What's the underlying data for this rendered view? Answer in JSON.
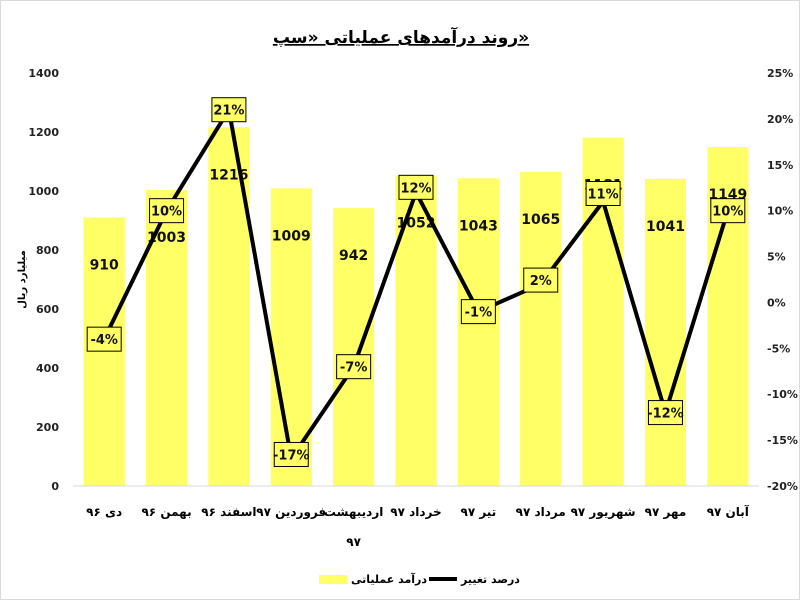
{
  "chart_data": {
    "type": "bar",
    "title": "روند درآمدهای عملیاتی «سپ»",
    "ylabel": "میلیارد ریال",
    "categories": [
      [
        "دی ۹۶"
      ],
      [
        "بهمن ۹۶"
      ],
      [
        "اسفند ۹۶"
      ],
      [
        "فروردین ۹۷"
      ],
      [
        "اردیبهشت",
        "۹۷"
      ],
      [
        "خرداد ۹۷"
      ],
      [
        "تیر ۹۷"
      ],
      [
        "مرداد ۹۷"
      ],
      [
        "شهریور ۹۷"
      ],
      [
        "مهر ۹۷"
      ],
      [
        "آبان ۹۷"
      ]
    ],
    "series": [
      {
        "name": "درآمد عملیاتی",
        "type": "bar",
        "axis": "left",
        "color": "#ffff66",
        "values": [
          910,
          1003,
          1216,
          1009,
          942,
          1052,
          1043,
          1065,
          1181,
          1041,
          1149
        ],
        "labels": [
          "910",
          "1003",
          "1216",
          "1009",
          "942",
          "1052",
          "1043",
          "1065",
          "1181",
          "1041",
          "1149"
        ]
      },
      {
        "name": "درصد تغییر",
        "type": "line",
        "axis": "right",
        "color": "#000000",
        "values": [
          -4,
          10,
          21,
          -17,
          -7,
          12,
          -1,
          2,
          11,
          -12,
          10
        ],
        "labels": [
          "-4%",
          "10%",
          "21%",
          "-17%",
          "-7%",
          "12%",
          "-1%",
          "2%",
          "11%",
          "-12%",
          "10%"
        ]
      }
    ],
    "ylim": [
      0,
      1400
    ],
    "yticks": [
      0,
      200,
      400,
      600,
      800,
      1000,
      1200,
      1400
    ],
    "ytick_labels": [
      "0",
      "200",
      "400",
      "600",
      "800",
      "1000",
      "1200",
      "1400"
    ],
    "y2lim": [
      -20,
      25
    ],
    "y2ticks": [
      -20,
      -15,
      -10,
      -5,
      0,
      5,
      10,
      15,
      20,
      25
    ],
    "y2tick_labels": [
      "-20%",
      "-15%",
      "-10%",
      "-5%",
      "0%",
      "5%",
      "10%",
      "15%",
      "20%",
      "25%"
    ],
    "grid": false,
    "legend_position": "bottom-right",
    "direction": "rtl-labels"
  }
}
